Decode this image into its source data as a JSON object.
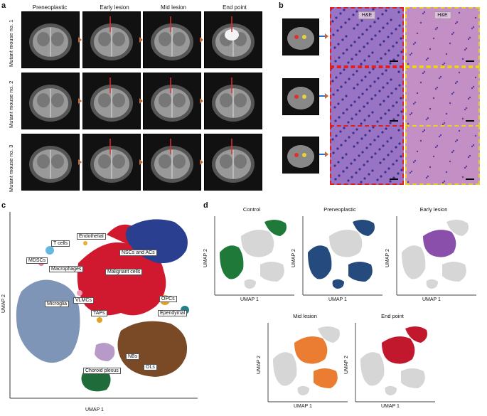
{
  "panels": {
    "a": "a",
    "b": "b",
    "c": "c",
    "d": "d"
  },
  "panel_a": {
    "columns": [
      "Preneoplastic",
      "Early lesion",
      "Mid lesion",
      "End point"
    ],
    "rows": [
      "Mutant mouse no. 1",
      "Mutant mouse no. 2",
      "Mutant mouse no. 3"
    ]
  },
  "panel_b": {
    "tag": "H&E"
  },
  "panel_c": {
    "xaxis": "UMAP 1",
    "yaxis": "UMAP 2",
    "clusters": [
      "T cells",
      "Endothelial",
      "MDSCs",
      "Macrophages",
      "NSCs and ACs",
      "Malignant cells",
      "OPCs",
      "Microglia",
      "VLMCs",
      "TAPs",
      "Ependymal",
      "NBs",
      "OLs",
      "Choroid plexus"
    ],
    "colors": {
      "microglia": "#7f95b8",
      "malignant": "#d0192e",
      "nsc": "#2a3f8f",
      "ol": "#7a4a26",
      "choroid": "#1f6b3a",
      "nb": "#b89ac8",
      "opc": "#e5a11f",
      "ependymal": "#1f7f8a",
      "tcell": "#66b8e0",
      "mdsc": "#e47fa0",
      "endo": "#e8b02a",
      "vlmc": "#ef9fb5"
    }
  },
  "panel_d": {
    "xaxis": "UMAP 1",
    "yaxis": "UMAP 2",
    "conditions": [
      "Control",
      "Preneoplastic",
      "Early lesion",
      "Mid lesion",
      "End point"
    ],
    "condition_colors": [
      "#1f7a3a",
      "#254a7e",
      "#8a4faa",
      "#ea7d32",
      "#c2182e"
    ],
    "background_color": "#d6d6d6"
  }
}
